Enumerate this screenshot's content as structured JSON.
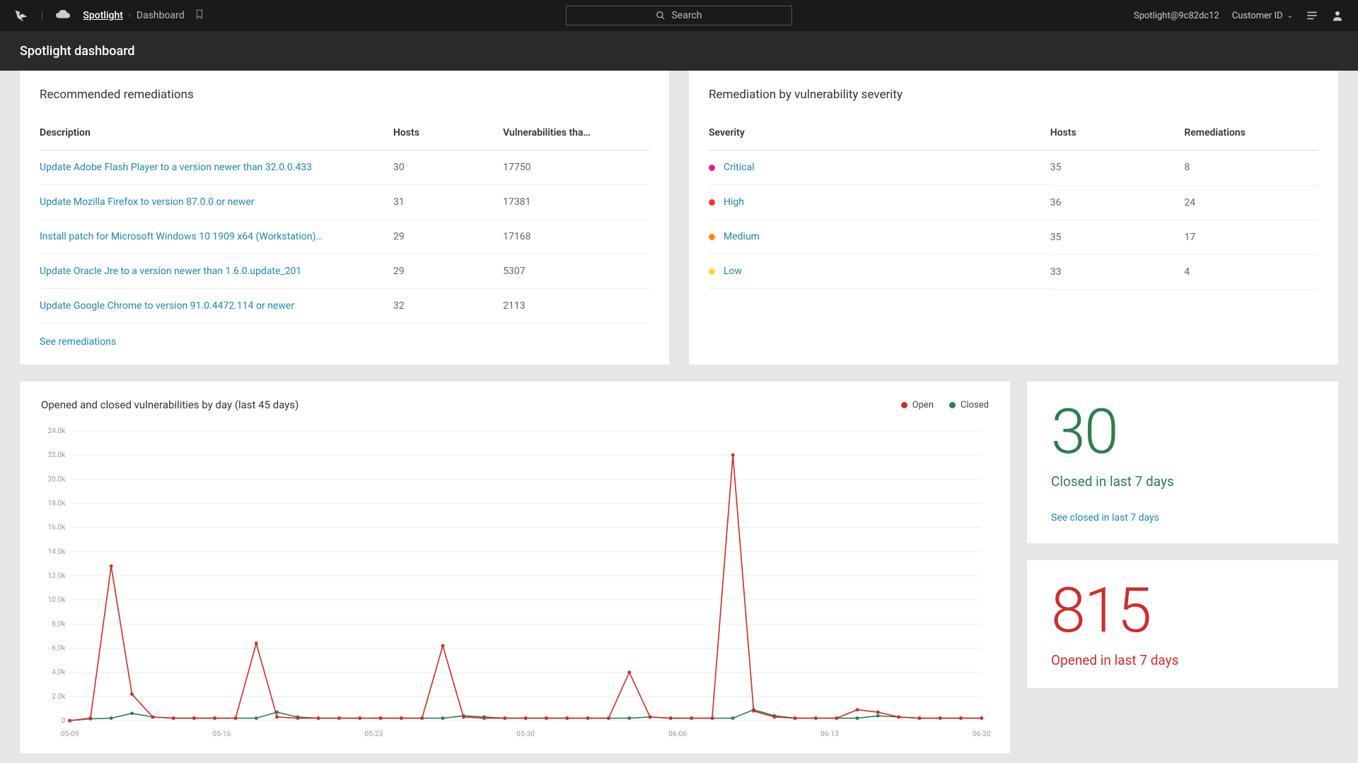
{
  "topbar": {
    "breadcrumb_main": "Spotlight",
    "breadcrumb_sub": "Dashboard",
    "search_placeholder": "Search",
    "tenant": "Spotlight@9c82dc12",
    "customer_id_label": "Customer ID"
  },
  "subheader": {
    "title": "Spotlight dashboard"
  },
  "remediations": {
    "title": "Recommended remediations",
    "columns": {
      "desc": "Description",
      "hosts": "Hosts",
      "vuln": "Vulnerabilities tha…"
    },
    "rows": [
      {
        "desc": "Update Adobe Flash Player to a version newer than 32.0.0.433",
        "hosts": "30",
        "vuln": "17750"
      },
      {
        "desc": "Update Mozilla Firefox to version 87.0.0 or newer",
        "hosts": "31",
        "vuln": "17381"
      },
      {
        "desc": "Install patch for Microsoft Windows 10 1909 x64 (Workstation)…",
        "hosts": "29",
        "vuln": "17168"
      },
      {
        "desc": "Update Oracle Jre to a version newer than 1.6.0.update_201",
        "hosts": "29",
        "vuln": "5307"
      },
      {
        "desc": "Update Google Chrome to version 91.0.4472.114 or newer",
        "hosts": "32",
        "vuln": "2113"
      }
    ],
    "see_link": "See remediations"
  },
  "severity": {
    "title": "Remediation by vulnerability severity",
    "columns": {
      "sev": "Severity",
      "hosts": "Hosts",
      "rem": "Remediations"
    },
    "rows": [
      {
        "label": "Critical",
        "color": "#e91e8c",
        "hosts": "35",
        "rem": "8"
      },
      {
        "label": "High",
        "color": "#e53935",
        "hosts": "36",
        "rem": "24"
      },
      {
        "label": "Medium",
        "color": "#fb8c00",
        "hosts": "35",
        "rem": "17"
      },
      {
        "label": "Low",
        "color": "#fdd835",
        "hosts": "33",
        "rem": "4"
      }
    ]
  },
  "chart": {
    "title": "Opened and closed vulnerabilities by day (last 45 days)",
    "legend": {
      "open": "Open",
      "closed": "Closed"
    },
    "colors": {
      "open": "#c9302c",
      "closed": "#2e7d50",
      "grid": "#eeeeee",
      "axis_text": "#999999"
    },
    "y_axis": {
      "max": 24000,
      "step": 2000,
      "suffix": "k"
    },
    "x_labels": [
      "05-09",
      "05-16",
      "05-23",
      "05-30",
      "06-06",
      "06-13",
      "06-20"
    ],
    "open_series": [
      0,
      200,
      12800,
      2200,
      300,
      200,
      200,
      200,
      200,
      6400,
      300,
      200,
      200,
      200,
      200,
      200,
      200,
      200,
      6200,
      300,
      200,
      200,
      200,
      200,
      200,
      200,
      200,
      4000,
      300,
      200,
      200,
      200,
      22000,
      800,
      300,
      200,
      200,
      200,
      900,
      700,
      300,
      200,
      200,
      200,
      200
    ],
    "closed_series": [
      0,
      150,
      200,
      600,
      300,
      200,
      200,
      200,
      200,
      200,
      700,
      300,
      200,
      200,
      200,
      200,
      200,
      200,
      200,
      400,
      300,
      200,
      200,
      200,
      200,
      200,
      200,
      200,
      300,
      200,
      200,
      200,
      200,
      900,
      400,
      200,
      200,
      200,
      200,
      400,
      300,
      200,
      200,
      200,
      200
    ]
  },
  "stats": {
    "closed": {
      "value": "30",
      "label": "Closed in last 7 days",
      "link": "See closed in last 7 days"
    },
    "opened": {
      "value": "815",
      "label": "Opened in last 7 days"
    }
  }
}
